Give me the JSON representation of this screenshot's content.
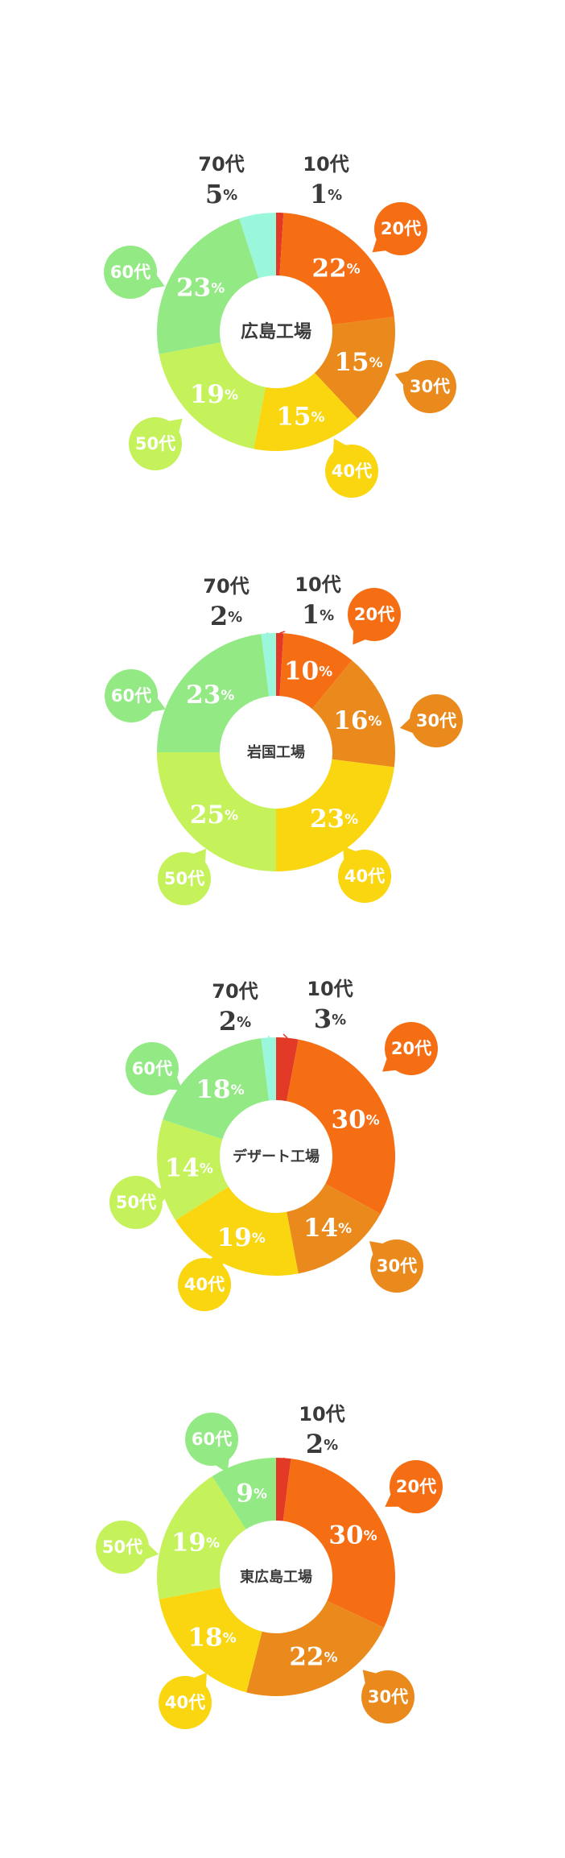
{
  "colors": {
    "10代": "#e23a26",
    "20代": "#f56e13",
    "30代": "#ea8a1c",
    "40代": "#f9d60f",
    "50代": "#c5f25b",
    "60代": "#93ea85",
    "70代": "#9bf7dc"
  },
  "text_colors": {
    "inside": "#ffffff",
    "outside": "#3a3a3a"
  },
  "chart_data": [
    {
      "type": "pie",
      "title": "広島工場",
      "categories": [
        "10代",
        "20代",
        "30代",
        "40代",
        "50代",
        "60代",
        "70代"
      ],
      "values": [
        1,
        22,
        15,
        15,
        19,
        23,
        5
      ],
      "unit": "%"
    },
    {
      "type": "pie",
      "title": "岩国工場",
      "categories": [
        "10代",
        "20代",
        "30代",
        "40代",
        "50代",
        "60代",
        "70代"
      ],
      "values": [
        1,
        10,
        16,
        23,
        25,
        23,
        2
      ],
      "unit": "%"
    },
    {
      "type": "pie",
      "title": "デザート工場",
      "categories": [
        "10代",
        "20代",
        "30代",
        "40代",
        "50代",
        "60代",
        "70代"
      ],
      "values": [
        3,
        30,
        14,
        19,
        14,
        18,
        2
      ],
      "unit": "%"
    },
    {
      "type": "pie",
      "title": "東広島工場",
      "categories": [
        "10代",
        "20代",
        "30代",
        "40代",
        "50代",
        "60代"
      ],
      "values": [
        2,
        30,
        22,
        18,
        19,
        9
      ],
      "unit": "%"
    }
  ]
}
